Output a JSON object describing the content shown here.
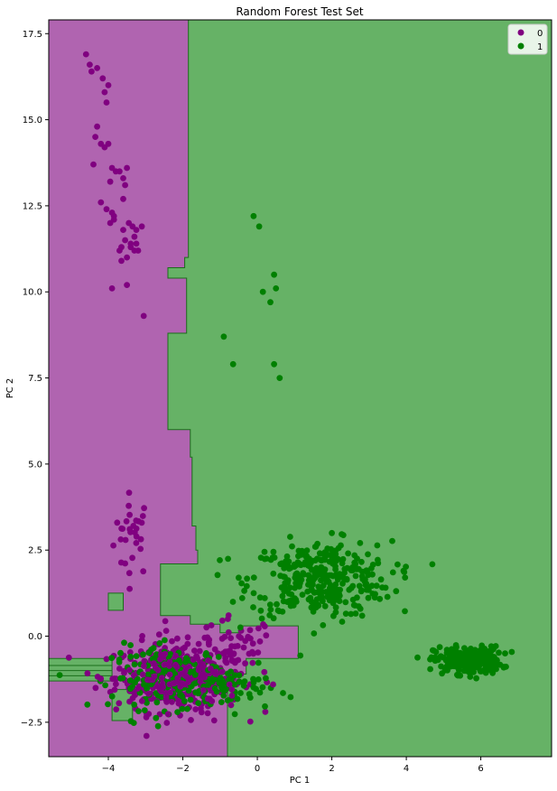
{
  "chart_data": {
    "type": "scatter",
    "title": "Random Forest Test Set",
    "xlabel": "PC 1",
    "ylabel": "PC 2",
    "xlim": [
      -5.6,
      7.9
    ],
    "ylim": [
      -3.5,
      17.9
    ],
    "xticks": [
      -4,
      -2,
      0,
      2,
      4,
      6
    ],
    "xtick_labels": [
      "−4",
      "−2",
      "0",
      "2",
      "4",
      "6"
    ],
    "yticks": [
      -2.5,
      0.0,
      2.5,
      5.0,
      7.5,
      10.0,
      12.5,
      15.0,
      17.5
    ],
    "ytick_labels": [
      "−2.5",
      "0.0",
      "2.5",
      "5.0",
      "7.5",
      "10.0",
      "12.5",
      "15.0",
      "17.5"
    ],
    "grid": false,
    "legend": {
      "placement": "top-right",
      "entries": [
        "0",
        "1"
      ]
    },
    "colors": {
      "class_0": "#800080",
      "class_1": "#008000",
      "region_0": "#b064b0",
      "region_1": "#66b266",
      "boundary": "#1a6e1a"
    },
    "regions": {
      "class_0_polygon": [
        [
          -5.6,
          17.9
        ],
        [
          -1.85,
          17.9
        ],
        [
          -1.85,
          11.0
        ],
        [
          -1.95,
          11.0
        ],
        [
          -1.95,
          10.7
        ],
        [
          -2.4,
          10.7
        ],
        [
          -2.4,
          10.4
        ],
        [
          -1.9,
          10.4
        ],
        [
          -1.9,
          8.8
        ],
        [
          -2.4,
          8.8
        ],
        [
          -2.4,
          6.0
        ],
        [
          -1.8,
          6.0
        ],
        [
          -1.8,
          5.2
        ],
        [
          -1.75,
          5.2
        ],
        [
          -1.75,
          3.2
        ],
        [
          -1.65,
          3.2
        ],
        [
          -1.65,
          2.5
        ],
        [
          -1.6,
          2.5
        ],
        [
          -1.6,
          2.1
        ],
        [
          -2.6,
          2.1
        ],
        [
          -2.6,
          0.6
        ],
        [
          -1.8,
          0.6
        ],
        [
          -1.8,
          0.35
        ],
        [
          -1.0,
          0.35
        ],
        [
          -1.0,
          0.1
        ],
        [
          -0.5,
          0.1
        ],
        [
          -0.5,
          0.3
        ],
        [
          1.1,
          0.3
        ],
        [
          1.1,
          -0.65
        ],
        [
          -0.3,
          -0.65
        ],
        [
          -0.3,
          -1.1
        ],
        [
          -0.8,
          -1.1
        ],
        [
          -0.8,
          -3.5
        ],
        [
          -5.6,
          -3.5
        ]
      ],
      "class_1_polygons": [
        [
          [
            -5.6,
            -0.65
          ],
          [
            -3.9,
            -0.65
          ],
          [
            -3.9,
            -1.3
          ],
          [
            -5.6,
            -1.3
          ]
        ],
        [
          [
            -3.9,
            -1.55
          ],
          [
            -3.35,
            -1.55
          ],
          [
            -3.35,
            -2.45
          ],
          [
            -3.9,
            -2.45
          ]
        ],
        [
          [
            -4.0,
            1.25
          ],
          [
            -3.6,
            1.25
          ],
          [
            -3.6,
            0.75
          ],
          [
            -4.0,
            0.75
          ]
        ]
      ]
    },
    "series": [
      {
        "name": "0",
        "x": [
          -4.6,
          -4.5,
          -4.45,
          -4.3,
          -4.15,
          -4.1,
          -4.05,
          -4.0,
          -4.2,
          -4.3,
          -4.35,
          -4.1,
          -4.0,
          -3.9,
          -3.7,
          -3.6,
          -3.5,
          -3.55,
          -3.95,
          -3.8,
          -3.9,
          -4.05,
          -4.2,
          -4.4,
          -3.85,
          -3.6,
          -3.45,
          -3.55,
          -3.3,
          -3.2,
          -3.4,
          -3.5,
          -3.35,
          -3.3,
          -3.25,
          -3.1,
          -3.4,
          -3.7,
          -3.65,
          -3.9,
          -3.85,
          -3.6,
          -3.95,
          -3.65,
          -3.05,
          -3.5,
          -3.25
        ],
        "y": [
          16.9,
          16.6,
          16.4,
          16.5,
          16.2,
          15.8,
          15.5,
          16.0,
          14.3,
          14.8,
          14.5,
          14.2,
          14.3,
          13.6,
          13.5,
          13.3,
          13.6,
          13.1,
          13.2,
          13.5,
          12.3,
          12.4,
          12.6,
          13.7,
          12.2,
          12.7,
          12.0,
          11.5,
          11.6,
          11.2,
          11.3,
          11.0,
          11.9,
          11.2,
          11.8,
          11.9,
          11.4,
          11.2,
          11.3,
          10.1,
          12.1,
          11.8,
          12.0,
          10.9,
          9.3,
          10.2,
          11.4
        ],
        "clusters": [
          {
            "cx": -3.35,
            "cy": 2.95,
            "sx": 0.25,
            "sy": 0.6,
            "n": 30
          },
          {
            "cx": -2.1,
            "cy": -1.2,
            "sx": 0.85,
            "sy": 0.5,
            "n": 360
          },
          {
            "cx": -0.55,
            "cy": -0.35,
            "sx": 0.5,
            "sy": 0.45,
            "n": 40
          }
        ]
      },
      {
        "name": "1",
        "x": [
          -0.1,
          0.05,
          0.45,
          0.15,
          0.35,
          0.5,
          -0.9,
          -0.65,
          0.45,
          0.6
        ],
        "y": [
          12.2,
          11.9,
          10.5,
          10.0,
          9.7,
          10.1,
          8.7,
          7.9,
          7.9,
          7.5
        ],
        "clusters": [
          {
            "cx": 1.7,
            "cy": 1.65,
            "sx": 0.95,
            "sy": 0.55,
            "n": 340
          },
          {
            "cx": 5.65,
            "cy": -0.7,
            "sx": 0.45,
            "sy": 0.2,
            "n": 220
          },
          {
            "cx": -2.3,
            "cy": -1.2,
            "sx": 0.8,
            "sy": 0.45,
            "n": 200
          },
          {
            "cx": -0.6,
            "cy": -1.55,
            "sx": 0.55,
            "sy": 0.3,
            "n": 45
          }
        ]
      }
    ]
  }
}
